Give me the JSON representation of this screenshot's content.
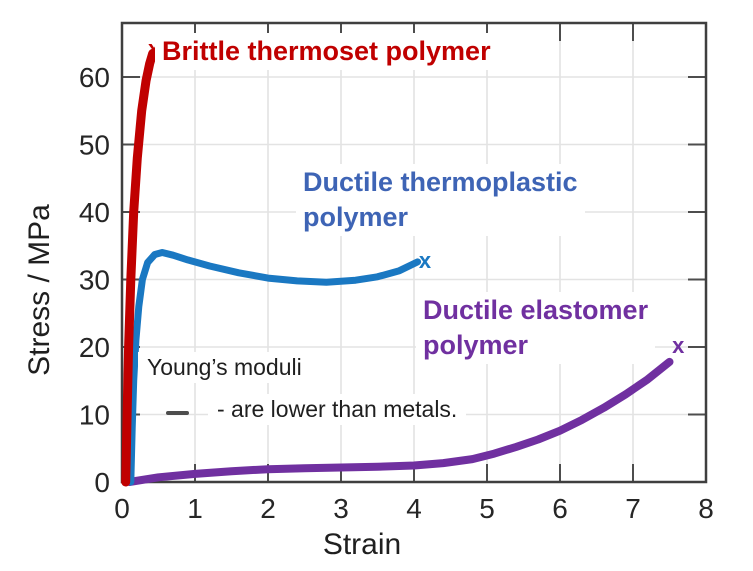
{
  "chart_data": {
    "type": "line",
    "title": "",
    "xlabel": "Strain",
    "ylabel": "Stress / MPa",
    "xlim": [
      0,
      8
    ],
    "ylim": [
      0,
      68
    ],
    "x_ticks": [
      0,
      1,
      2,
      3,
      4,
      5,
      6,
      7,
      8
    ],
    "y_ticks": [
      0,
      10,
      20,
      30,
      40,
      50,
      60
    ],
    "grid": true,
    "legend_position": "none",
    "style": {
      "axis_color": "#3f3f3f",
      "tick_color": "#4d4d4d",
      "grid_color": "#e3e3e3",
      "tick_label_color": "#262626",
      "background": "#ffffff"
    },
    "series": [
      {
        "name": "Brittle thermoset polymer",
        "label_lines": [
          "Brittle thermoset polymer"
        ],
        "color": "#c00000",
        "label_color": "#c00000",
        "stroke_width": 9,
        "marker_glyph": "x",
        "fracture_marker": [
          0.44,
          64.3
        ],
        "points": [
          [
            0.05,
            0
          ],
          [
            0.07,
            10
          ],
          [
            0.09,
            20
          ],
          [
            0.12,
            30
          ],
          [
            0.16,
            40
          ],
          [
            0.21,
            48
          ],
          [
            0.27,
            55
          ],
          [
            0.33,
            59.5
          ],
          [
            0.38,
            62
          ],
          [
            0.42,
            63.5
          ]
        ]
      },
      {
        "name": "Ductile thermoplastic polymer",
        "label_lines": [
          "Ductile thermoplastic",
          "polymer"
        ],
        "color": "#1a78c2",
        "label_color": "#3e64b5",
        "stroke_width": 7,
        "marker_glyph": "x",
        "fracture_marker": [
          4.15,
          32.9
        ],
        "points": [
          [
            0.12,
            0
          ],
          [
            0.14,
            8
          ],
          [
            0.16,
            15
          ],
          [
            0.19,
            21
          ],
          [
            0.23,
            26
          ],
          [
            0.28,
            30
          ],
          [
            0.35,
            32.5
          ],
          [
            0.45,
            33.7
          ],
          [
            0.55,
            34
          ],
          [
            0.7,
            33.6
          ],
          [
            0.9,
            32.9
          ],
          [
            1.2,
            32
          ],
          [
            1.6,
            31
          ],
          [
            2.0,
            30.2
          ],
          [
            2.4,
            29.8
          ],
          [
            2.8,
            29.6
          ],
          [
            3.2,
            29.9
          ],
          [
            3.5,
            30.4
          ],
          [
            3.8,
            31.3
          ],
          [
            4.05,
            32.6
          ]
        ]
      },
      {
        "name": "Ductile elastomer polymer",
        "label_lines": [
          "Ductile elastomer",
          "polymer"
        ],
        "color": "#7030a0",
        "label_color": "#7030a0",
        "stroke_width": 8,
        "marker_glyph": "x",
        "fracture_marker": [
          7.62,
          20.3
        ],
        "points": [
          [
            0.1,
            0
          ],
          [
            0.5,
            0.7
          ],
          [
            1.0,
            1.2
          ],
          [
            1.5,
            1.6
          ],
          [
            2.0,
            1.9
          ],
          [
            2.5,
            2.05
          ],
          [
            3.0,
            2.15
          ],
          [
            3.5,
            2.25
          ],
          [
            4.0,
            2.45
          ],
          [
            4.4,
            2.8
          ],
          [
            4.8,
            3.4
          ],
          [
            5.1,
            4.2
          ],
          [
            5.4,
            5.2
          ],
          [
            5.7,
            6.3
          ],
          [
            6.0,
            7.6
          ],
          [
            6.3,
            9.2
          ],
          [
            6.6,
            11.0
          ],
          [
            6.9,
            13.0
          ],
          [
            7.2,
            15.2
          ],
          [
            7.5,
            17.8
          ]
        ]
      }
    ],
    "annotations": {
      "young_line1": "Young’s moduli",
      "young_line2": "- are lower than metals."
    }
  }
}
